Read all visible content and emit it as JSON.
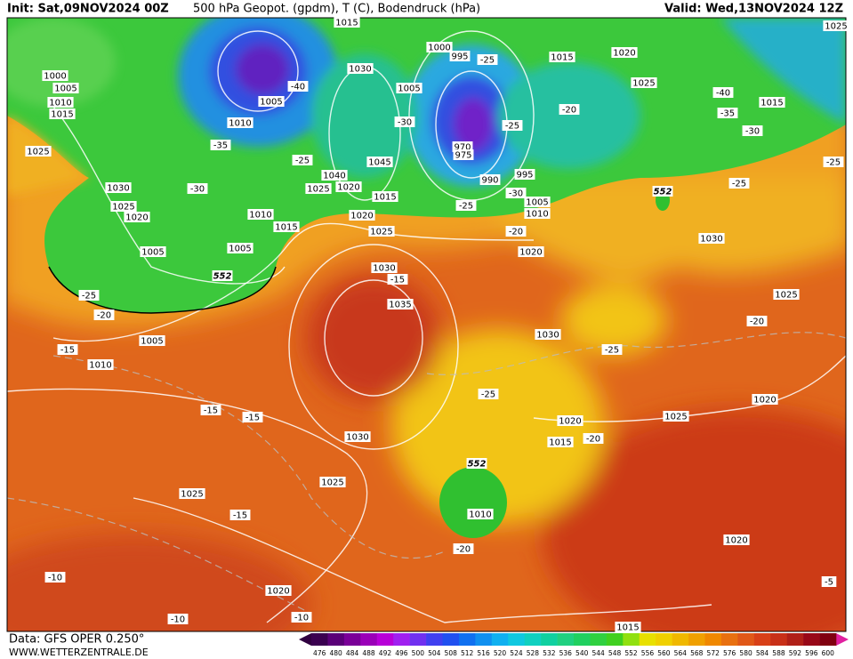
{
  "header": {
    "init": "Init: Sat,09NOV2024 00Z",
    "title": "500 hPa Geopot. (gpdm), T (C), Bodendruck (hPa)",
    "valid": "Valid: Wed,13NOV2024 12Z"
  },
  "footer": {
    "data": "Data: GFS OPER 0.250°",
    "site": "WWW.WETTERZENTRALE.DE"
  },
  "colorbar": {
    "ticks": [
      476,
      480,
      484,
      488,
      492,
      496,
      500,
      504,
      508,
      512,
      516,
      520,
      524,
      528,
      532,
      536,
      540,
      544,
      548,
      552,
      556,
      560,
      564,
      568,
      572,
      576,
      580,
      584,
      588,
      592,
      596,
      600
    ]
  },
  "map": {
    "isobar_labels": [
      1015,
      1000,
      1005,
      1010,
      1015,
      1025,
      1030,
      1025,
      1020,
      1005,
      1010,
      1005,
      1010,
      1015,
      1005,
      1030,
      1005,
      1045,
      1040,
      1025,
      1020,
      1015,
      1020,
      1025,
      1000,
      995,
      970,
      975,
      990,
      995,
      1005,
      1010,
      1020,
      1015,
      1020,
      1025,
      1015,
      1025,
      1030,
      1035,
      1030,
      1030,
      1025,
      1020,
      1025,
      1020,
      1015,
      1030,
      1025,
      1025,
      1010,
      1005,
      1010,
      1020,
      1020,
      1015
    ],
    "temperature_labels": [
      -25,
      -20,
      -15,
      -15,
      -15,
      -15,
      -15,
      -10,
      -10,
      -10,
      -20,
      -25,
      -25,
      -20,
      -20,
      -5,
      -40,
      -35,
      -30,
      -25,
      -30,
      -25,
      -25,
      -20,
      -30,
      -25,
      -20,
      -40,
      -35,
      -30,
      -25,
      -25
    ],
    "height_labels": [
      552,
      552,
      552
    ]
  }
}
